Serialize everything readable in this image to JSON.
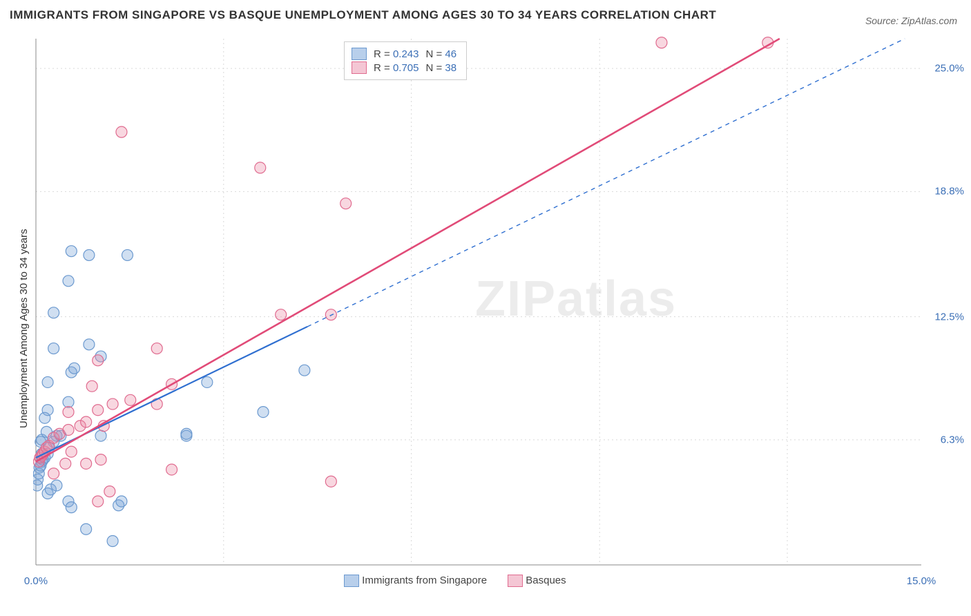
{
  "title": "IMMIGRANTS FROM SINGAPORE VS BASQUE UNEMPLOYMENT AMONG AGES 30 TO 34 YEARS CORRELATION CHART",
  "title_fontsize": 17,
  "source_label": "Source: ",
  "source_name": "ZipAtlas.com",
  "source_fontsize": 14,
  "ylabel": "Unemployment Among Ages 30 to 34 years",
  "ylabel_fontsize": 15,
  "watermark": "ZIPatlas",
  "watermark_fontsize": 72,
  "chart": {
    "type": "scatter",
    "background_color": "#ffffff",
    "grid_color": "#d9d9d9",
    "grid_dash": "2,4",
    "axis_line_color": "#888888",
    "xlim": [
      0.0,
      15.0
    ],
    "ylim": [
      0.0,
      26.5
    ],
    "xtick_positions": [
      0.0,
      15.0
    ],
    "xtick_labels": [
      "0.0%",
      "15.0%"
    ],
    "ytick_positions": [
      6.3,
      12.5,
      18.8,
      25.0
    ],
    "ytick_labels": [
      "6.3%",
      "12.5%",
      "18.8%",
      "25.0%"
    ],
    "xgrid_minor": [
      3.18,
      6.36,
      9.55,
      12.73
    ],
    "series": [
      {
        "name": "Immigrants from Singapore",
        "color_fill": "rgba(120,162,214,0.35)",
        "color_stroke": "#6b99cf",
        "swatch_fill": "#b8cfeb",
        "swatch_border": "#6b99cf",
        "marker_radius": 8,
        "R": "0.243",
        "N": "46",
        "fit": {
          "x1": 0.0,
          "y1": 5.4,
          "x2": 4.6,
          "y2": 12.0,
          "color": "#2f6fd0",
          "width": 2.2,
          "ext_color": "#2f6fd0",
          "ext_dash": "6,6",
          "ext_width": 1.4,
          "ext_x2": 15.0,
          "ext_y2": 26.9
        },
        "points": [
          [
            0.02,
            4.0
          ],
          [
            0.03,
            4.3
          ],
          [
            0.05,
            4.6
          ],
          [
            0.06,
            4.9
          ],
          [
            0.08,
            5.0
          ],
          [
            0.1,
            5.2
          ],
          [
            0.12,
            5.3
          ],
          [
            0.15,
            5.4
          ],
          [
            0.1,
            5.6
          ],
          [
            0.2,
            5.6
          ],
          [
            0.22,
            5.9
          ],
          [
            0.08,
            6.2
          ],
          [
            0.3,
            6.2
          ],
          [
            0.1,
            6.3
          ],
          [
            0.35,
            6.5
          ],
          [
            0.42,
            6.5
          ],
          [
            0.18,
            6.7
          ],
          [
            0.55,
            3.2
          ],
          [
            0.6,
            2.9
          ],
          [
            0.85,
            1.8
          ],
          [
            1.3,
            1.2
          ],
          [
            1.4,
            3.0
          ],
          [
            1.45,
            3.2
          ],
          [
            0.2,
            3.6
          ],
          [
            0.25,
            3.8
          ],
          [
            0.35,
            4.0
          ],
          [
            0.15,
            7.4
          ],
          [
            0.2,
            7.8
          ],
          [
            0.55,
            8.2
          ],
          [
            0.2,
            9.2
          ],
          [
            0.6,
            9.7
          ],
          [
            0.65,
            9.9
          ],
          [
            0.3,
            10.9
          ],
          [
            0.9,
            11.1
          ],
          [
            0.3,
            12.7
          ],
          [
            0.55,
            14.3
          ],
          [
            0.9,
            15.6
          ],
          [
            1.55,
            15.6
          ],
          [
            0.6,
            15.8
          ],
          [
            1.1,
            10.5
          ],
          [
            1.1,
            6.5
          ],
          [
            2.55,
            6.5
          ],
          [
            2.55,
            6.6
          ],
          [
            2.9,
            9.2
          ],
          [
            3.85,
            7.7
          ],
          [
            4.55,
            9.8
          ]
        ]
      },
      {
        "name": "Basques",
        "color_fill": "rgba(235,140,165,0.35)",
        "color_stroke": "#e06b8f",
        "swatch_fill": "#f4c6d4",
        "swatch_border": "#e06b8f",
        "marker_radius": 8,
        "R": "0.705",
        "N": "38",
        "fit": {
          "x1": 0.0,
          "y1": 5.2,
          "x2": 12.6,
          "y2": 26.5,
          "color": "#e14b78",
          "width": 2.6
        },
        "points": [
          [
            0.05,
            5.2
          ],
          [
            0.07,
            5.4
          ],
          [
            0.1,
            5.5
          ],
          [
            0.12,
            5.6
          ],
          [
            0.15,
            5.7
          ],
          [
            0.18,
            5.9
          ],
          [
            0.22,
            6.0
          ],
          [
            0.3,
            4.6
          ],
          [
            0.5,
            5.1
          ],
          [
            0.85,
            5.1
          ],
          [
            0.6,
            5.7
          ],
          [
            1.05,
            3.2
          ],
          [
            1.1,
            5.3
          ],
          [
            1.25,
            3.7
          ],
          [
            0.3,
            6.4
          ],
          [
            0.4,
            6.6
          ],
          [
            0.55,
            6.8
          ],
          [
            0.75,
            7.0
          ],
          [
            0.85,
            7.2
          ],
          [
            1.15,
            7.0
          ],
          [
            0.55,
            7.7
          ],
          [
            1.05,
            7.8
          ],
          [
            1.3,
            8.1
          ],
          [
            1.6,
            8.3
          ],
          [
            0.95,
            9.0
          ],
          [
            1.05,
            10.3
          ],
          [
            2.05,
            8.1
          ],
          [
            2.05,
            10.9
          ],
          [
            2.3,
            4.8
          ],
          [
            2.3,
            9.1
          ],
          [
            1.45,
            21.8
          ],
          [
            3.8,
            20.0
          ],
          [
            4.15,
            12.6
          ],
          [
            5.0,
            12.6
          ],
          [
            5.0,
            4.2
          ],
          [
            5.25,
            18.2
          ],
          [
            10.6,
            26.3
          ],
          [
            12.4,
            26.3
          ]
        ]
      }
    ]
  },
  "legend_top": {
    "rows": [
      {
        "swatch_series": 0,
        "r_label": "R = ",
        "r_val": "0.243",
        "n_label": "N = ",
        "n_val": "46"
      },
      {
        "swatch_series": 1,
        "r_label": "R = ",
        "r_val": "0.705",
        "n_label": "N = ",
        "n_val": "38"
      }
    ]
  },
  "legend_bottom": {
    "items": [
      {
        "swatch_series": 0,
        "label": "Immigrants from Singapore"
      },
      {
        "swatch_series": 1,
        "label": "Basques"
      }
    ]
  }
}
